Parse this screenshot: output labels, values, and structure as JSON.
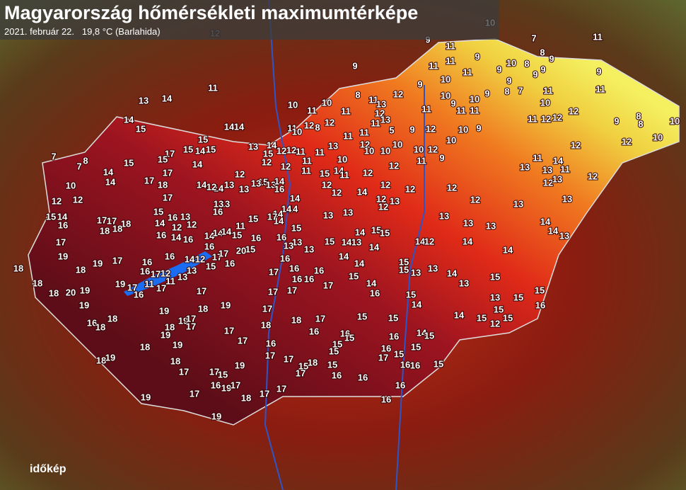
{
  "header": {
    "title": "Magyarország hőmérsékleti maximumtérképe",
    "subtitle": "2021. február 22.   19,8 °C (Barlahida)"
  },
  "logo": "időkép",
  "readings": [
    12,
    10,
    9,
    13,
    14,
    11,
    14,
    15,
    14,
    14,
    15,
    15,
    14,
    15,
    17,
    15,
    14,
    15,
    14,
    14,
    17,
    17,
    18,
    10,
    12,
    12,
    7,
    7,
    8,
    15,
    14,
    16,
    17,
    17,
    18,
    18,
    18,
    17,
    15,
    16,
    13,
    14,
    16,
    14,
    16,
    12,
    12,
    17,
    19,
    18,
    18,
    18,
    20,
    19,
    18,
    19,
    17,
    16,
    16,
    14,
    12,
    16,
    17,
    17,
    16,
    15,
    13,
    12,
    17,
    16,
    19,
    17,
    16,
    11,
    17,
    11,
    13,
    17,
    19,
    16,
    18,
    18,
    19,
    19,
    17,
    18,
    19,
    18,
    19,
    17,
    17,
    18,
    19,
    18,
    19,
    18,
    17,
    17,
    15,
    19,
    17,
    17,
    18,
    17,
    17,
    17,
    16,
    16,
    16,
    17,
    16,
    16,
    18,
    17,
    16,
    14,
    14,
    15,
    14,
    16,
    15,
    15,
    15,
    14,
    16,
    15,
    15,
    15,
    15,
    16,
    16,
    16,
    17,
    15,
    15,
    16,
    16,
    15,
    16,
    16,
    16,
    14,
    15,
    14,
    15,
    12,
    15,
    15,
    15,
    16,
    13,
    15,
    15,
    13,
    14,
    13,
    15,
    13,
    15,
    14,
    12,
    14,
    14,
    13,
    13,
    13,
    14,
    14,
    13,
    13,
    12,
    12,
    13,
    13,
    11,
    13,
    14,
    11,
    12,
    13,
    12,
    12,
    12,
    10,
    10,
    9,
    8,
    8,
    12,
    12,
    11,
    12,
    10,
    11,
    11,
    9,
    11,
    7,
    8,
    9,
    9,
    9,
    8,
    10,
    9,
    8,
    7,
    9,
    11,
    11,
    11,
    9,
    11,
    9,
    10,
    11,
    11,
    10,
    10,
    9,
    11,
    12,
    10,
    9,
    10,
    12,
    9,
    10,
    11,
    9,
    8,
    11,
    13,
    12,
    13,
    12,
    9,
    5,
    9,
    11,
    11,
    11,
    10,
    11,
    10,
    11,
    10,
    12,
    8,
    12,
    12,
    12,
    14,
    13,
    15,
    12,
    12,
    11,
    11,
    11,
    13,
    11,
    12,
    10,
    10,
    10,
    12,
    12,
    12,
    12,
    10,
    14,
    15,
    11,
    11,
    14,
    12,
    12,
    12,
    12,
    13,
    13,
    13,
    14,
    13,
    14,
    15,
    15,
    14,
    15,
    13,
    13,
    15,
    12,
    14,
    13,
    14,
    12,
    13,
    15,
    13,
    13,
    14,
    16,
    14,
    14,
    14,
    14,
    14,
    15,
    11,
    13,
    13,
    16,
    16,
    15,
    14,
    14,
    14,
    15,
    16,
    13,
    17,
    20,
    19,
    17,
    16,
    19,
    17,
    18,
    17,
    17,
    17,
    15,
    18,
    17,
    17,
    16,
    19
  ]
}
